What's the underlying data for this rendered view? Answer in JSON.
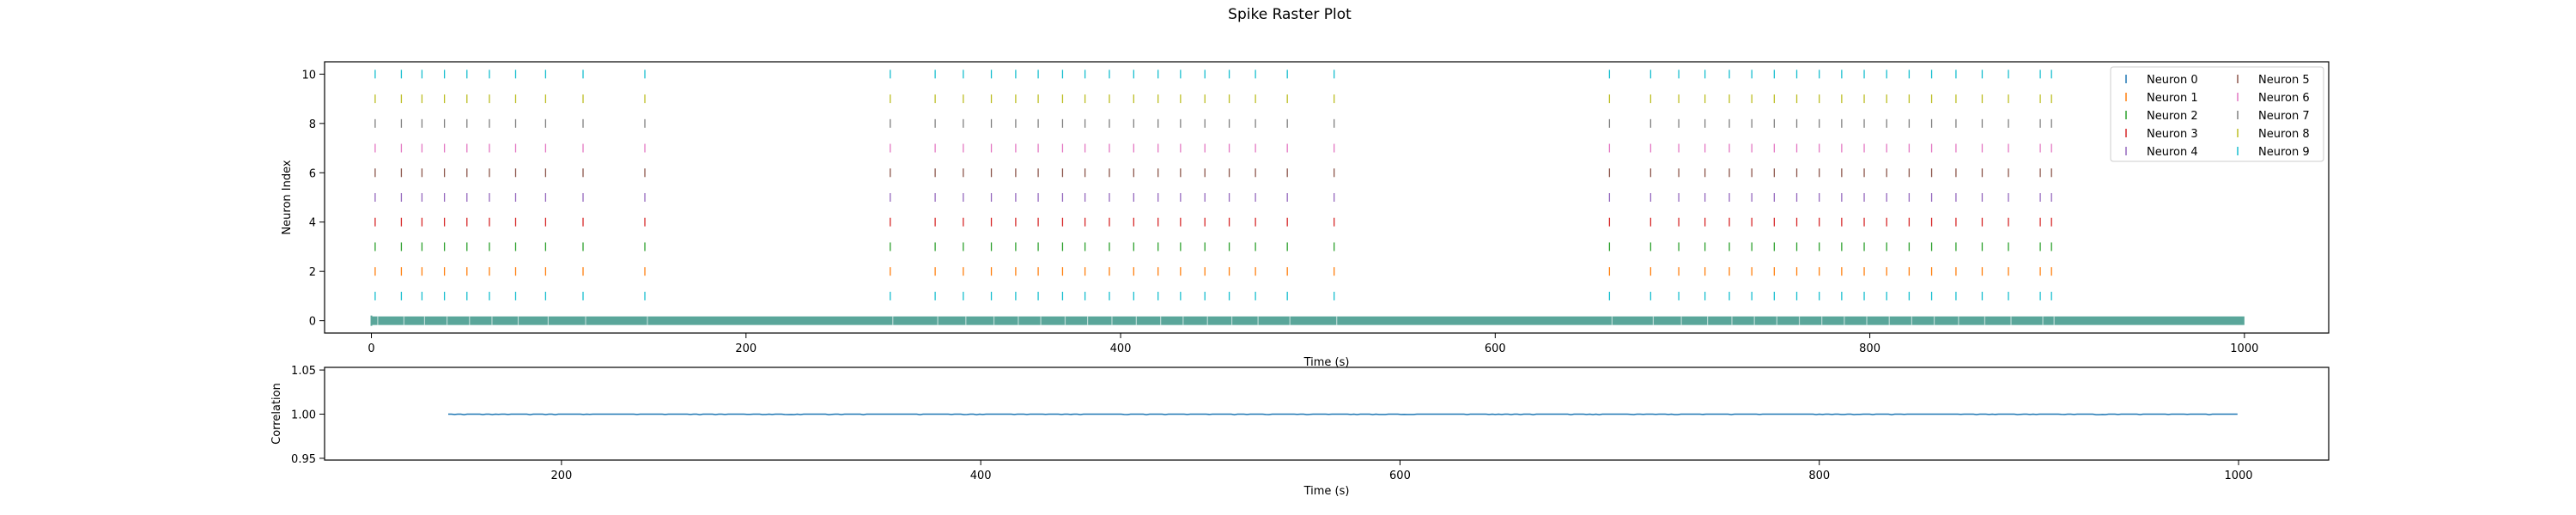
{
  "figure": {
    "suptitle": "Spike Raster Plot"
  },
  "colors": {
    "neuron_palette": [
      "#1f77b4",
      "#ff7f0e",
      "#2ca02c",
      "#d62728",
      "#9467bd",
      "#8c564b",
      "#e377c2",
      "#7f7f7f",
      "#bcbd22",
      "#17becf"
    ],
    "spike_palette": [
      "#17becf",
      "#ff7f0e",
      "#2ca02c",
      "#d62728",
      "#9467bd",
      "#8c564b",
      "#e377c2",
      "#7f7f7f",
      "#bcbd22",
      "#17becf"
    ],
    "baseline_band": "#5aa69a",
    "correlation_line": "#1f77b4"
  },
  "chart_data": [
    {
      "type": "scatter",
      "subtype": "raster",
      "xlabel": "Time (s)",
      "ylabel": "Neuron Index",
      "xlim": [
        -25,
        1045
      ],
      "ylim": [
        -0.5,
        10.5
      ],
      "xticks": [
        0,
        200,
        400,
        600,
        800,
        1000
      ],
      "yticks": [
        0,
        2,
        4,
        6,
        8,
        10
      ],
      "grid": false,
      "legend": {
        "placement": "top-right",
        "columns": 2,
        "entries": [
          "Neuron 0",
          "Neuron 1",
          "Neuron 2",
          "Neuron 3",
          "Neuron 4",
          "Neuron 5",
          "Neuron 6",
          "Neuron 7",
          "Neuron 8",
          "Neuron 9"
        ]
      },
      "baseline_row": {
        "y": 0,
        "x_range": [
          0,
          1000
        ]
      },
      "spike_rows": [
        1,
        2,
        3,
        4,
        5,
        6,
        7,
        8,
        9,
        10
      ],
      "burst_times": [
        2,
        16,
        27,
        39,
        51,
        63,
        77,
        93,
        113,
        146,
        277,
        301,
        316,
        331,
        344,
        356,
        369,
        381,
        394,
        407,
        420,
        432,
        445,
        458,
        472,
        489,
        514,
        661,
        683,
        698,
        712,
        725,
        737,
        749,
        761,
        773,
        785,
        797,
        809,
        821,
        833,
        846,
        860,
        874,
        891,
        897
      ]
    },
    {
      "type": "line",
      "xlabel": "Time (s)",
      "ylabel": "Correlation",
      "xlim": [
        87,
        1043
      ],
      "ylim": [
        0.948,
        1.053
      ],
      "xticks": [
        200,
        400,
        600,
        800,
        1000
      ],
      "yticks": [
        0.95,
        1.0,
        1.05
      ],
      "ytick_labels": [
        "0.95",
        "1.00",
        "1.05"
      ],
      "grid": false,
      "series": [
        {
          "x_range": [
            146,
            1000
          ],
          "value": 1.0,
          "fluctuation": 0.0006
        }
      ]
    }
  ]
}
